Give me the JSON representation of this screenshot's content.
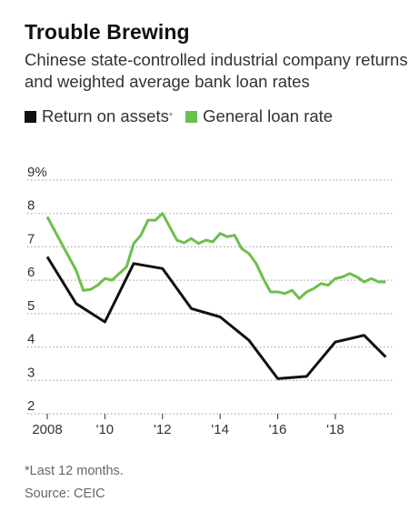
{
  "header": {
    "title": "Trouble Brewing",
    "subtitle": "Chinese state-controlled industrial company returns and weighted average bank loan rates"
  },
  "legend": [
    {
      "label": "Return on assets",
      "mark": "*",
      "color": "#111111"
    },
    {
      "label": "General loan rate",
      "mark": "",
      "color": "#6cbf4b"
    }
  ],
  "footer": {
    "footnote": "*Last 12 months.",
    "source": "Source: CEIC"
  },
  "chart_data": {
    "type": "line",
    "title": "Trouble Brewing",
    "xlim": [
      2008,
      2019.8
    ],
    "ylim": [
      2,
      9
    ],
    "y_ticks": [
      {
        "value": 9,
        "label": "9%"
      },
      {
        "value": 8,
        "label": "8"
      },
      {
        "value": 7,
        "label": "7"
      },
      {
        "value": 6,
        "label": "6"
      },
      {
        "value": 5,
        "label": "5"
      },
      {
        "value": 4,
        "label": "4"
      },
      {
        "value": 3,
        "label": "3"
      },
      {
        "value": 2,
        "label": "2"
      }
    ],
    "x_ticks": [
      {
        "value": 2008,
        "label": "2008"
      },
      {
        "value": 2010,
        "label": "'10"
      },
      {
        "value": 2012,
        "label": "'12"
      },
      {
        "value": 2014,
        "label": "'14"
      },
      {
        "value": 2016,
        "label": "'16"
      },
      {
        "value": 2018,
        "label": "'18"
      }
    ],
    "grid": true,
    "series": [
      {
        "name": "Return on assets",
        "color": "#111111",
        "x": [
          2008.0,
          2009.0,
          2010.0,
          2011.0,
          2012.0,
          2013.0,
          2014.0,
          2015.0,
          2016.0,
          2017.0,
          2018.0,
          2019.0,
          2019.75
        ],
        "y": [
          6.7,
          5.3,
          4.75,
          6.5,
          6.35,
          5.15,
          4.9,
          4.2,
          3.05,
          3.12,
          4.15,
          4.35,
          3.7
        ]
      },
      {
        "name": "General loan rate",
        "color": "#6cbf4b",
        "x": [
          2008.0,
          2008.5,
          2009.0,
          2009.25,
          2009.5,
          2009.75,
          2010.0,
          2010.25,
          2010.5,
          2010.75,
          2011.0,
          2011.25,
          2011.5,
          2011.75,
          2012.0,
          2012.25,
          2012.5,
          2012.75,
          2013.0,
          2013.25,
          2013.5,
          2013.75,
          2014.0,
          2014.25,
          2014.5,
          2014.75,
          2015.0,
          2015.25,
          2015.5,
          2015.75,
          2016.0,
          2016.25,
          2016.5,
          2016.75,
          2017.0,
          2017.25,
          2017.5,
          2017.75,
          2018.0,
          2018.25,
          2018.5,
          2018.75,
          2019.0,
          2019.25,
          2019.5,
          2019.75
        ],
        "y": [
          7.9,
          7.1,
          6.3,
          5.7,
          5.72,
          5.85,
          6.05,
          6.0,
          6.2,
          6.4,
          7.1,
          7.35,
          7.8,
          7.8,
          8.0,
          7.6,
          7.2,
          7.12,
          7.25,
          7.1,
          7.2,
          7.15,
          7.4,
          7.3,
          7.35,
          6.95,
          6.8,
          6.5,
          6.05,
          5.65,
          5.65,
          5.6,
          5.7,
          5.45,
          5.65,
          5.75,
          5.9,
          5.85,
          6.05,
          6.1,
          6.2,
          6.1,
          5.95,
          6.05,
          5.95,
          5.95
        ]
      }
    ]
  }
}
